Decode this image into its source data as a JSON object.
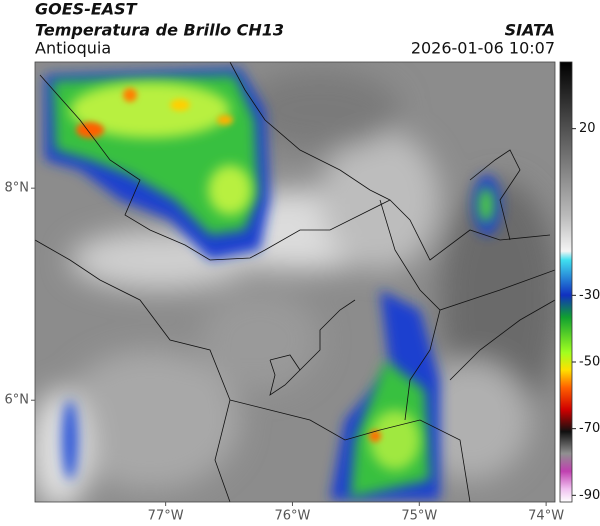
{
  "header": {
    "title": "GOES-EAST",
    "subtitle": "Temperatura de Brillo CH13",
    "region": "Antioquia",
    "source": "SIATA",
    "datetime": "2026-01-06 10:07"
  },
  "map": {
    "xlim": [
      -78.03,
      -73.93
    ],
    "ylim": [
      5.04,
      9.19
    ],
    "xticks": [
      {
        "value": -77,
        "label": "77°W"
      },
      {
        "value": -76,
        "label": "76°W"
      },
      {
        "value": -75,
        "label": "75°W"
      },
      {
        "value": -74,
        "label": "74°W"
      }
    ],
    "yticks": [
      {
        "value": 8,
        "label": "8°N"
      },
      {
        "value": 6,
        "label": "6°N"
      }
    ]
  },
  "colorbar": {
    "lim": [
      -92,
      40
    ],
    "ticks": [
      20,
      -30,
      -50,
      -70,
      -90
    ]
  }
}
